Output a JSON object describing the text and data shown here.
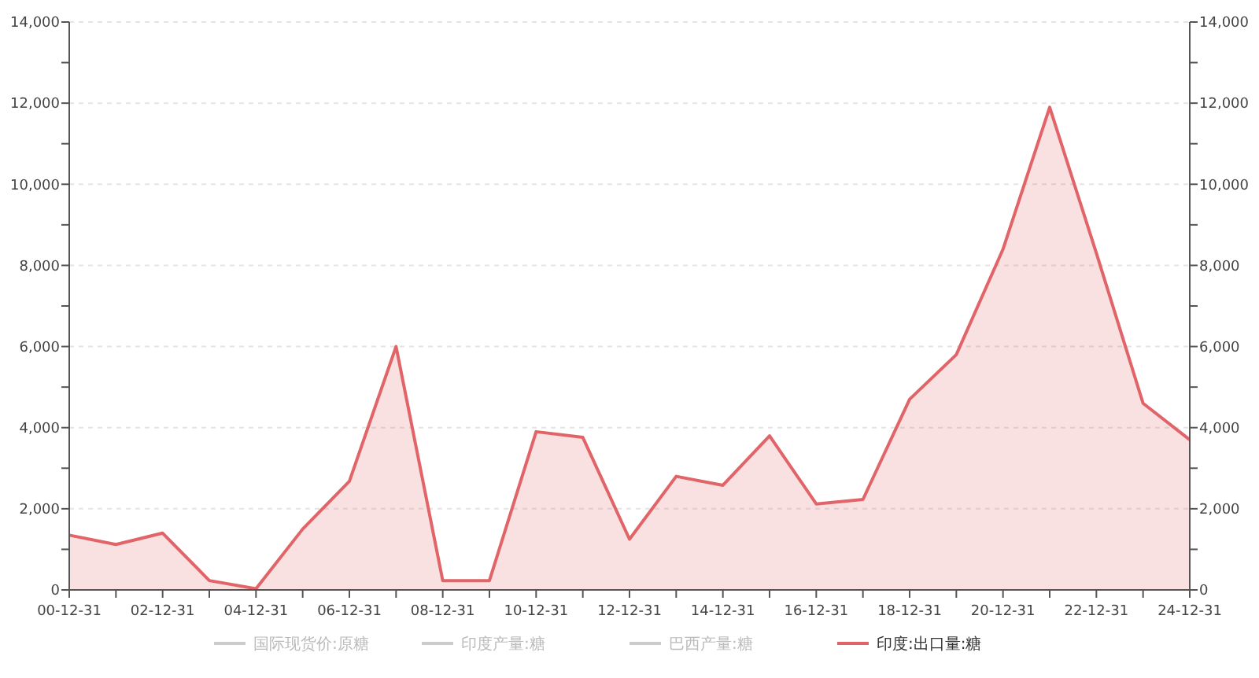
{
  "chart_data": {
    "type": "area",
    "categories": [
      "00-12-31",
      null,
      "02-12-31",
      null,
      "04-12-31",
      null,
      "06-12-31",
      null,
      "08-12-31",
      null,
      "10-12-31",
      null,
      "12-12-31",
      null,
      "14-12-31",
      null,
      "16-12-31",
      null,
      "18-12-31",
      null,
      "20-12-31",
      null,
      "22-12-31",
      null,
      "24-12-31"
    ],
    "series": [
      {
        "name": "国际现货价:原糖",
        "color": "#cccccc",
        "values": [
          null,
          null,
          null,
          null,
          null,
          null,
          null,
          null,
          null,
          null,
          null,
          null,
          null,
          null,
          null,
          null,
          null,
          null,
          null,
          null,
          null,
          null,
          null,
          null,
          null
        ]
      },
      {
        "name": "印度产量:糖",
        "color": "#cccccc",
        "values": [
          null,
          null,
          null,
          null,
          null,
          null,
          null,
          null,
          null,
          null,
          null,
          null,
          null,
          null,
          null,
          null,
          null,
          null,
          null,
          null,
          null,
          null,
          null,
          null,
          null
        ]
      },
      {
        "name": "巴西产量:糖",
        "color": "#cccccc",
        "values": [
          null,
          null,
          null,
          null,
          null,
          null,
          null,
          null,
          null,
          null,
          null,
          null,
          null,
          null,
          null,
          null,
          null,
          null,
          null,
          null,
          null,
          null,
          null,
          null,
          null
        ]
      },
      {
        "name": "印度:出口量:糖",
        "color": "#e06468",
        "values": [
          1350,
          1120,
          1400,
          230,
          30,
          1500,
          2680,
          6000,
          230,
          230,
          3900,
          3760,
          1250,
          2800,
          2580,
          3800,
          2120,
          2230,
          4700,
          5800,
          8400,
          11900,
          8300,
          4600,
          3700
        ]
      }
    ],
    "ylim": [
      0,
      14000
    ],
    "yticks": [
      0,
      {
        "value": 1000,
        "label": null
      },
      {
        "value": 2000,
        "label": "2,000"
      },
      {
        "value": 3000,
        "label": null
      },
      {
        "value": 4000,
        "label": "4,000"
      },
      {
        "value": 5000,
        "label": null
      },
      {
        "value": 6000,
        "label": "6,000"
      },
      {
        "value": 7000,
        "label": null
      },
      {
        "value": 8000,
        "label": "8,000"
      },
      {
        "value": 9000,
        "label": null
      },
      {
        "value": 10000,
        "label": "10,000"
      },
      {
        "value": 11000,
        "label": null
      },
      {
        "value": 12000,
        "label": "12,000"
      },
      {
        "value": 13000,
        "label": null
      },
      {
        "value": 14000,
        "label": "14,000"
      }
    ],
    "y2lim": [
      0,
      14000
    ],
    "y2ticks": [
      0,
      {
        "value": 1000,
        "label": null
      },
      {
        "value": 2000,
        "label": "2,000"
      },
      {
        "value": 3000,
        "label": null
      },
      {
        "value": 4000,
        "label": "4,000"
      },
      {
        "value": 5000,
        "label": null
      },
      {
        "value": 6000,
        "label": "6,000"
      },
      {
        "value": 7000,
        "label": null
      },
      {
        "value": 8000,
        "label": "8,000"
      },
      {
        "value": 9000,
        "label": null
      },
      {
        "value": 10000,
        "label": "10,000"
      },
      {
        "value": 11000,
        "label": null
      },
      {
        "value": 12000,
        "label": "12,000"
      },
      {
        "value": 13000,
        "label": null
      },
      {
        "value": 14000,
        "label": "14,000"
      }
    ],
    "grid": "y",
    "legend": "bottom"
  }
}
